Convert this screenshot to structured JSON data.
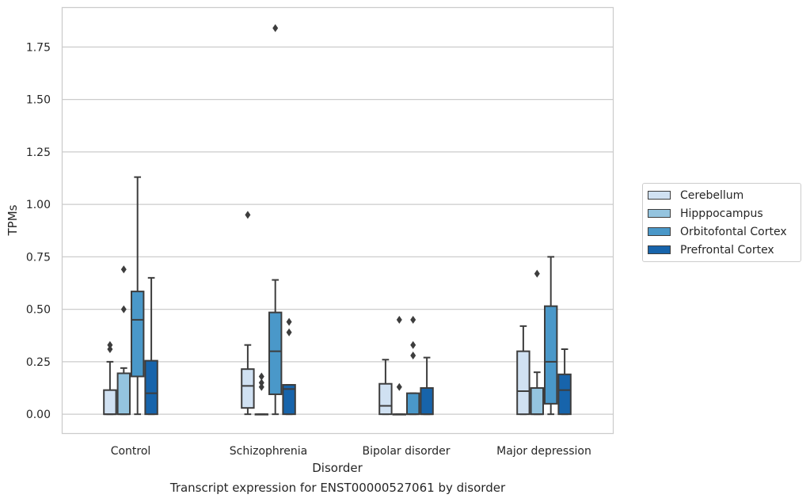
{
  "caption": "Transcript expression for ENST00000527061 by disorder",
  "chart_data": {
    "type": "box",
    "xlabel": "Disorder",
    "ylabel": "TPMs",
    "ylim": [
      -0.09,
      1.94
    ],
    "yticks": [
      0.0,
      0.25,
      0.5,
      0.75,
      1.0,
      1.25,
      1.5,
      1.75
    ],
    "ytick_labels": [
      "0.00",
      "0.25",
      "0.50",
      "0.75",
      "1.00",
      "1.25",
      "1.50",
      "1.75"
    ],
    "grid": true,
    "legend_position": "right",
    "categories": [
      "Control",
      "Schizophrenia",
      "Bipolar disorder",
      "Major depression"
    ],
    "series": [
      {
        "name": "Cerebellum",
        "color": "#d0e1f2",
        "boxes": [
          {
            "min": 0.0,
            "q1": 0.0,
            "median": 0.0,
            "q3": 0.115,
            "max": 0.25,
            "outliers": [
              0.31,
              0.33
            ]
          },
          {
            "min": 0.0,
            "q1": 0.03,
            "median": 0.135,
            "q3": 0.215,
            "max": 0.33,
            "outliers": [
              0.95
            ]
          },
          {
            "min": 0.0,
            "q1": 0.0,
            "median": 0.04,
            "q3": 0.145,
            "max": 0.26,
            "outliers": []
          },
          {
            "min": 0.0,
            "q1": 0.0,
            "median": 0.11,
            "q3": 0.3,
            "max": 0.42,
            "outliers": []
          }
        ]
      },
      {
        "name": "Hipppocampus",
        "color": "#94c4df",
        "boxes": [
          {
            "min": 0.0,
            "q1": 0.0,
            "median": 0.0,
            "q3": 0.195,
            "max": 0.22,
            "outliers": [
              0.5,
              0.69
            ]
          },
          {
            "min": 0.0,
            "q1": 0.0,
            "median": 0.0,
            "q3": 0.0,
            "max": 0.0,
            "outliers": [
              0.13,
              0.15,
              0.18
            ]
          },
          {
            "min": 0.0,
            "q1": 0.0,
            "median": 0.0,
            "q3": 0.0,
            "max": 0.0,
            "outliers": [
              0.13,
              0.45
            ]
          },
          {
            "min": 0.0,
            "q1": 0.0,
            "median": 0.0,
            "q3": 0.125,
            "max": 0.2,
            "outliers": [
              0.67
            ]
          }
        ]
      },
      {
        "name": "Orbitofontal Cortex",
        "color": "#4a98c9",
        "boxes": [
          {
            "min": 0.0,
            "q1": 0.18,
            "median": 0.45,
            "q3": 0.585,
            "max": 1.13,
            "outliers": []
          },
          {
            "min": 0.0,
            "q1": 0.095,
            "median": 0.3,
            "q3": 0.485,
            "max": 0.64,
            "outliers": [
              1.84
            ]
          },
          {
            "min": 0.0,
            "q1": 0.0,
            "median": 0.0,
            "q3": 0.1,
            "max": 0.1,
            "outliers": [
              0.28,
              0.33,
              0.45
            ]
          },
          {
            "min": 0.0,
            "q1": 0.05,
            "median": 0.25,
            "q3": 0.515,
            "max": 0.75,
            "outliers": []
          }
        ]
      },
      {
        "name": "Prefrontal Cortex",
        "color": "#1764ab",
        "boxes": [
          {
            "min": 0.0,
            "q1": 0.0,
            "median": 0.1,
            "q3": 0.255,
            "max": 0.65,
            "outliers": []
          },
          {
            "min": 0.0,
            "q1": 0.0,
            "median": 0.12,
            "q3": 0.14,
            "max": 0.14,
            "outliers": [
              0.39,
              0.44
            ]
          },
          {
            "min": 0.0,
            "q1": 0.0,
            "median": 0.0,
            "q3": 0.125,
            "max": 0.27,
            "outliers": []
          },
          {
            "min": 0.0,
            "q1": 0.0,
            "median": 0.115,
            "q3": 0.19,
            "max": 0.31,
            "outliers": []
          }
        ]
      }
    ]
  }
}
